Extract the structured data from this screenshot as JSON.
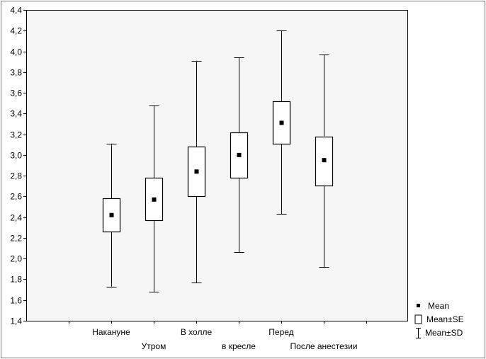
{
  "chart_data": {
    "type": "boxplot",
    "categories": [
      "Накануне",
      "Утром",
      "В холле",
      "в кресле",
      "Перед",
      "После анестезии"
    ],
    "series": [
      {
        "stat": "mean",
        "values": [
          2.42,
          2.57,
          2.84,
          3.0,
          3.31,
          2.95
        ]
      },
      {
        "stat": "mean_minus_se",
        "values": [
          2.26,
          2.37,
          2.6,
          2.78,
          3.11,
          2.71
        ]
      },
      {
        "stat": "mean_plus_se",
        "values": [
          2.58,
          2.78,
          3.08,
          3.22,
          3.52,
          3.18
        ]
      },
      {
        "stat": "mean_minus_sd",
        "values": [
          1.73,
          1.68,
          1.77,
          2.06,
          2.43,
          1.92
        ]
      },
      {
        "stat": "mean_plus_sd",
        "values": [
          3.11,
          3.48,
          3.91,
          3.94,
          4.2,
          3.97
        ]
      }
    ],
    "ylim": [
      1.4,
      4.4
    ],
    "yticks": [
      "1,4",
      "1,6",
      "1,8",
      "2,0",
      "2,2",
      "2,4",
      "2,6",
      "2,8",
      "3,0",
      "3,2",
      "3,4",
      "3,6",
      "3,8",
      "4,0",
      "4,2",
      "4,4"
    ],
    "grid": false,
    "legend": {
      "position": "bottom-right",
      "entries": [
        "Mean",
        "Mean±SE",
        "Mean±SD"
      ]
    }
  }
}
